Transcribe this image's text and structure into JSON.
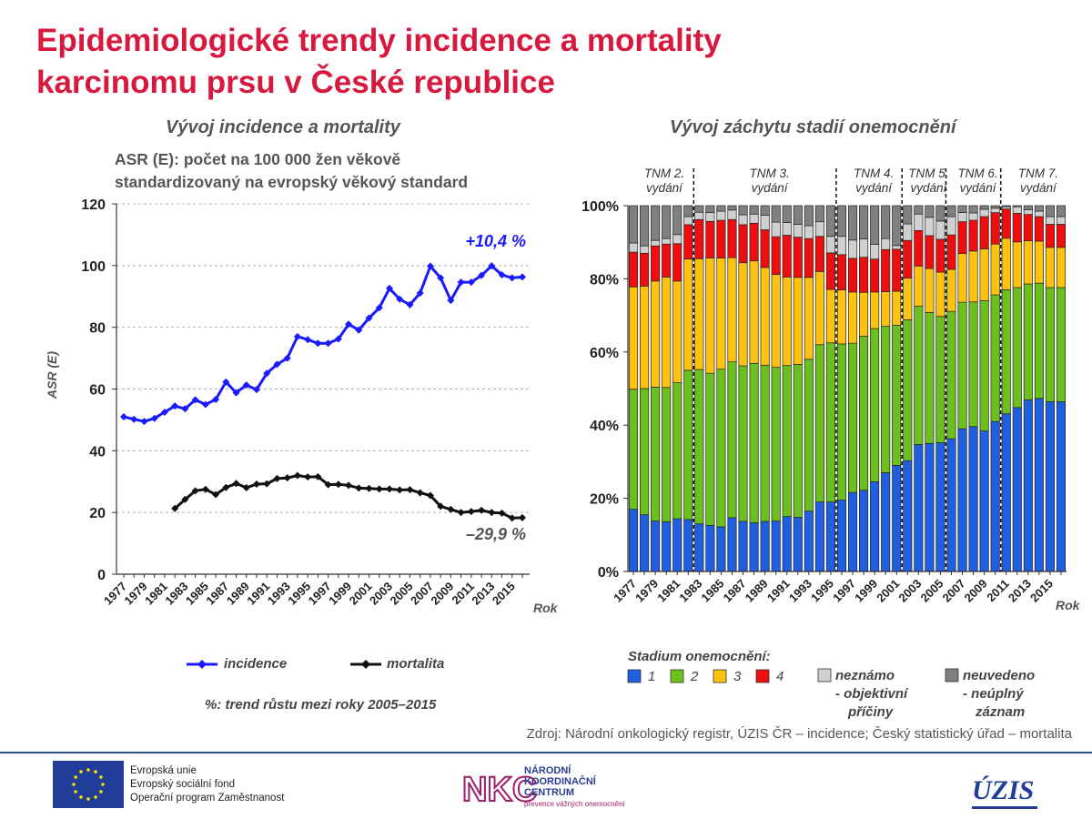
{
  "header": {
    "title_line1": "Epidemiologické trendy incidence a mortality",
    "title_line2": "karcinomu prsu v České republice"
  },
  "left_chart_subtitle": "Vývoj incidence a mortality",
  "right_chart_subtitle": "Vývoj záchytu stadií onemocnění",
  "asr_description_line1": "ASR (E): počet na 100 000 žen věkově",
  "asr_description_line2": "standardizovaný na evropský věkový standard",
  "left_legend": {
    "incidence": "incidence",
    "mortalita": "mortalita",
    "trend_note": "%: trend růstu mezi roky 2005–2015"
  },
  "right_legend": {
    "title": "Stadium  onemocnění:",
    "stage1": "1",
    "stage2": "2",
    "stage3": "3",
    "stage4": "4",
    "unknown_line1": "neznámo",
    "unknown_line2": "- objektivní",
    "unknown_line3": "příčiny",
    "notstated_line1": "neuvedeno",
    "notstated_line2": "- neúplný",
    "notstated_line3": "záznam"
  },
  "source": "Zdroj: Národní onkologický registr, ÚZIS ČR – incidence; Český statistický úřad – mortalita",
  "footer": {
    "eu_line1": "Evropská unie",
    "eu_line2": "Evropský sociální fond",
    "eu_line3": "Operační program Zaměstnanost",
    "nkc_line1": "NÁRODNÍ",
    "nkc_line2": "KOORDINAČNÍ",
    "nkc_line3": "CENTRUM",
    "nkc_small": "prevence vážných onemocnění",
    "nkc_logo": "NKC",
    "uzis_logo": "ÚZIS"
  },
  "colors": {
    "title": "#d7193f",
    "incidence": "#1a1aff",
    "mortality": "#111111",
    "stage1": "#1f5fe0",
    "stage2": "#6bbf1f",
    "stage3": "#ffc20e",
    "stage4": "#ee0e0e",
    "unknown": "#d0d0d0",
    "notstated": "#808080"
  },
  "chart_data": [
    {
      "type": "line",
      "ylabel": "ASR (E)",
      "xlabel": "Rok",
      "ylim": [
        0,
        120
      ],
      "yticks": [
        "0",
        "20",
        "40",
        "60",
        "80",
        "100",
        "120"
      ],
      "xticklabels": [
        "1977",
        "1979",
        "1981",
        "1983",
        "1985",
        "1987",
        "1989",
        "1991",
        "1993",
        "1995",
        "1997",
        "1999",
        "2001",
        "2003",
        "2005",
        "2007",
        "2009",
        "2011",
        "2013",
        "2015"
      ],
      "grid": true,
      "series": [
        {
          "name": "incidence",
          "x": [
            1977,
            1978,
            1979,
            1980,
            1981,
            1982,
            1983,
            1984,
            1985,
            1986,
            1987,
            1988,
            1989,
            1990,
            1991,
            1992,
            1993,
            1994,
            1995,
            1996,
            1997,
            1998,
            1999,
            2000,
            2001,
            2002,
            2003,
            2004,
            2005,
            2006,
            2007,
            2008,
            2009,
            2010,
            2011,
            2012,
            2013,
            2014,
            2015,
            2016
          ],
          "values": [
            51.0,
            50.2,
            49.5,
            50.5,
            52.5,
            54.5,
            53.6,
            56.5,
            55.0,
            56.6,
            62.3,
            58.8,
            61.3,
            59.8,
            65.1,
            68.0,
            70.0,
            77.0,
            76.0,
            74.8,
            74.8,
            76.2,
            81.0,
            79.1,
            83.0,
            86.3,
            92.6,
            89.1,
            87.3,
            91.1,
            99.8,
            96.0,
            88.7,
            94.6,
            94.6,
            96.8,
            99.9,
            97.0,
            96.0,
            96.3
          ],
          "annotation": "+10,4 %"
        },
        {
          "name": "mortalita",
          "x": [
            1982,
            1983,
            1984,
            1985,
            1986,
            1987,
            1988,
            1989,
            1990,
            1991,
            1992,
            1993,
            1994,
            1995,
            1996,
            1997,
            1998,
            1999,
            2000,
            2001,
            2002,
            2003,
            2004,
            2005,
            2006,
            2007,
            2008,
            2009,
            2010,
            2011,
            2012,
            2013,
            2014,
            2015,
            2016
          ],
          "values": [
            21.3,
            24.2,
            27.0,
            27.5,
            25.8,
            28.1,
            29.4,
            28.0,
            29.2,
            29.3,
            31.0,
            31.2,
            32.0,
            31.5,
            31.6,
            29.0,
            29.1,
            28.8,
            27.9,
            27.8,
            27.6,
            27.6,
            27.3,
            27.4,
            26.4,
            25.5,
            22.0,
            21.0,
            20.0,
            20.3,
            20.7,
            20.0,
            19.8,
            18.2,
            18.3
          ],
          "annotation": "–29,9 %"
        }
      ]
    },
    {
      "type": "bar",
      "stacked": true,
      "xlabel": "Rok",
      "ylim": [
        0,
        100
      ],
      "yticks": [
        "0%",
        "20%",
        "40%",
        "60%",
        "80%",
        "100%"
      ],
      "categories": [
        "1977",
        "1978",
        "1979",
        "1980",
        "1981",
        "1982",
        "1983",
        "1984",
        "1985",
        "1986",
        "1987",
        "1988",
        "1989",
        "1990",
        "1991",
        "1992",
        "1993",
        "1994",
        "1995",
        "1996",
        "1997",
        "1998",
        "1999",
        "2000",
        "2001",
        "2002",
        "2003",
        "2004",
        "2005",
        "2006",
        "2007",
        "2008",
        "2009",
        "2010",
        "2011",
        "2012",
        "2013",
        "2014",
        "2015",
        "2016"
      ],
      "xticklabels": [
        "1977",
        "1979",
        "1981",
        "1983",
        "1985",
        "1987",
        "1989",
        "1991",
        "1993",
        "1995",
        "1997",
        "1999",
        "2001",
        "2003",
        "2005",
        "2007",
        "2009",
        "2011",
        "2013",
        "2015"
      ],
      "tnm_editions": [
        {
          "label1": "TNM 2.",
          "label2": "vydání",
          "boundary_after": "1982"
        },
        {
          "label1": "TNM 3.",
          "label2": "vydání",
          "boundary_after": "1995"
        },
        {
          "label1": "TNM 4.",
          "label2": "vydání",
          "boundary_after": "2001"
        },
        {
          "label1": "TNM 5.",
          "label2": "vydání",
          "boundary_after": "2005"
        },
        {
          "label1": "TNM 6.",
          "label2": "vydání",
          "boundary_after": "2010"
        },
        {
          "label1": "TNM 7.",
          "label2": "vydání",
          "boundary_after": ""
        }
      ],
      "series": [
        {
          "name": "1",
          "values": [
            17,
            15.5,
            13.8,
            13.6,
            14.4,
            14.2,
            13,
            12.6,
            12.2,
            14.7,
            13.7,
            13.3,
            13.7,
            13.8,
            15,
            14.8,
            16.5,
            19,
            19,
            19.5,
            21.6,
            22.2,
            24.5,
            27,
            29,
            30.3,
            34.7,
            35,
            35.2,
            36.3,
            39,
            39.6,
            38.4,
            41,
            43.1,
            44.8,
            46.9,
            47.3,
            46.4,
            46.4
          ]
        },
        {
          "name": "2",
          "values": [
            32.8,
            34.5,
            36.6,
            36.7,
            37.2,
            40.8,
            42.2,
            41.6,
            43.1,
            42.6,
            42.5,
            43.6,
            42.7,
            42,
            41.3,
            41.8,
            41.5,
            43,
            43.5,
            42.7,
            40.8,
            42.1,
            41.9,
            40,
            38.3,
            38.5,
            37.8,
            35.8,
            34.5,
            34.8,
            34.6,
            34.1,
            35.6,
            34.6,
            33.9,
            32.8,
            31.7,
            31.5,
            31.2,
            31.2
          ]
        },
        {
          "name": "3",
          "values": [
            28,
            28,
            29,
            30.2,
            27.8,
            30.4,
            30.3,
            31.5,
            30.4,
            28.5,
            28.2,
            28,
            26.7,
            25.4,
            24.2,
            23.8,
            22.4,
            20,
            14.6,
            14.8,
            14,
            12,
            10,
            9.5,
            9.3,
            11.4,
            11,
            12,
            12.1,
            11.5,
            13.3,
            13.9,
            14.2,
            13.9,
            14.1,
            12.5,
            11.8,
            11.5,
            11,
            11
          ]
        },
        {
          "name": "4",
          "values": [
            9.5,
            9,
            9.6,
            9,
            10.2,
            9.4,
            10.7,
            10,
            10.3,
            10.4,
            10.4,
            10.3,
            10.3,
            10.3,
            11.4,
            11,
            10.6,
            9.6,
            10,
            9.6,
            9.2,
            9.6,
            9,
            11.5,
            11.5,
            10.3,
            9.7,
            9,
            9,
            9.4,
            8.7,
            8.4,
            8.8,
            8.6,
            8,
            7.8,
            7.2,
            6.7,
            6.3,
            6.3
          ]
        },
        {
          "name": "neznámo - objektivní příčiny",
          "values": [
            2.5,
            2,
            1.5,
            1.5,
            2.5,
            2.2,
            2,
            2.4,
            2.5,
            2.6,
            2.7,
            2.5,
            4,
            4,
            3.5,
            3.5,
            3.5,
            4,
            4.5,
            5,
            5,
            5,
            4,
            3,
            1,
            4.5,
            4.5,
            5,
            5,
            5,
            2.5,
            2,
            2,
            1.2,
            0.6,
            1.8,
            1.3,
            1.5,
            2.1,
            2.1
          ]
        },
        {
          "name": "neuvedeno - neúplný záznam",
          "values": [
            10.2,
            11,
            9.5,
            9,
            7.9,
            3,
            1.8,
            1.9,
            1.5,
            1.2,
            2.5,
            2.3,
            2.6,
            4.5,
            4.6,
            5.1,
            5.5,
            4.4,
            8.4,
            8.4,
            9.4,
            9.1,
            10.6,
            9,
            10.9,
            5,
            2.3,
            3.2,
            4.2,
            3,
            1.9,
            2,
            1,
            0.7,
            0.3,
            0.3,
            1.1,
            1.5,
            3,
            3
          ]
        }
      ]
    }
  ]
}
